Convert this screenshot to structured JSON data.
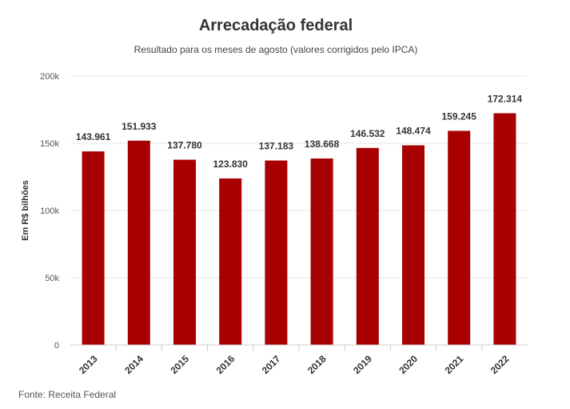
{
  "chart_data": {
    "type": "bar",
    "title": "Arrecadação federal",
    "subtitle": "Resultado para os meses de agosto (valores corrigidos pelo IPCA)",
    "ylabel": "Em R$ bilhões",
    "xlabel": "",
    "categories": [
      "2013",
      "2014",
      "2015",
      "2016",
      "2017",
      "2018",
      "2019",
      "2020",
      "2021",
      "2022"
    ],
    "values": [
      143.961,
      151.933,
      137.78,
      123.83,
      137.183,
      138.668,
      146.532,
      148.474,
      159.245,
      172.314
    ],
    "data_labels": [
      "143.961",
      "151.933",
      "137.780",
      "123.830",
      "137.183",
      "138.668",
      "146.532",
      "148.474",
      "159.245",
      "172.314"
    ],
    "ylim": [
      0,
      200
    ],
    "yticks": [
      0,
      50,
      100,
      150,
      200
    ],
    "ytick_labels": [
      "0",
      "50k",
      "100k",
      "150k",
      "200k"
    ],
    "grid": true,
    "legend": "none",
    "bar_color": "#a80000",
    "source": "Fonte: Receita Federal"
  }
}
